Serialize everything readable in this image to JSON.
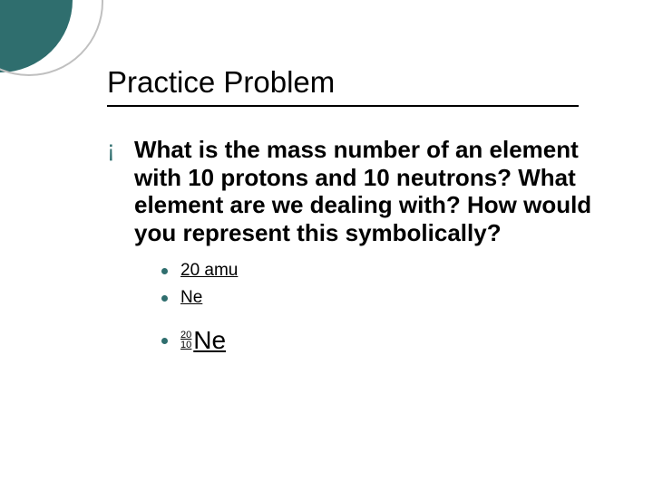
{
  "colors": {
    "accent": "#2f6e6e",
    "rule": "#000000",
    "text": "#000000",
    "background": "#ffffff",
    "outline_circle": "#c0c0c0"
  },
  "title": "Practice Problem",
  "question": {
    "bullet_glyph": "¡",
    "text": "What is the mass number of an element with 10 protons and 10 neutrons?  What element are we dealing with?  How would you represent this symbolically?"
  },
  "answers": [
    {
      "text": "20 amu"
    },
    {
      "text": "Ne"
    }
  ],
  "isotope": {
    "mass_number": "20",
    "atomic_number": "10",
    "symbol": "Ne"
  }
}
